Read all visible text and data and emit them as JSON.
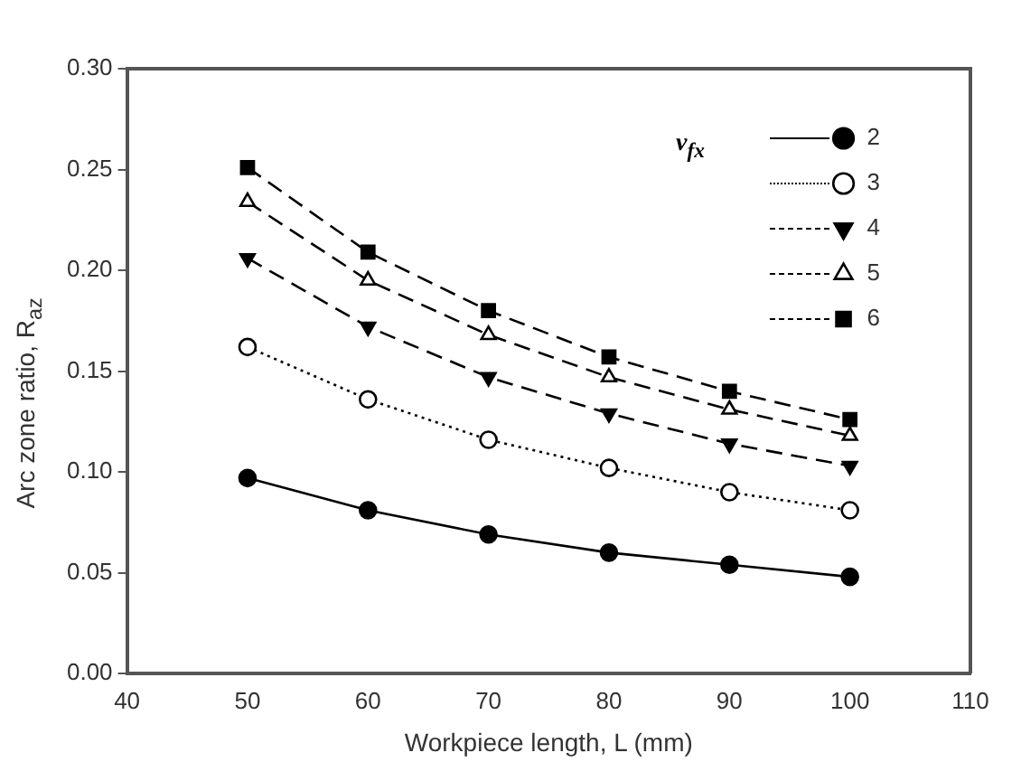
{
  "chart_data": {
    "type": "line",
    "xlabel": "Workpiece length, L (mm)",
    "ylabel": "Arc zone ratio, R$_{az}$",
    "legend_title": "v$_{fx}$",
    "legend": "top right",
    "grid": false,
    "x": [
      50,
      60,
      70,
      80,
      90,
      100
    ],
    "xlim": [
      40,
      110
    ],
    "xticks": [
      40,
      50,
      60,
      70,
      80,
      90,
      100,
      110
    ],
    "ylim": [
      0,
      0.3
    ],
    "yticks": [
      {
        "value": 0,
        "label": "0.00"
      },
      0.05,
      {
        "value": 0.1,
        "label": "0.10"
      },
      0.15,
      {
        "value": 0.2,
        "label": "0.20"
      },
      0.25,
      {
        "value": 0.3,
        "label": "0.30"
      }
    ],
    "series": [
      {
        "name": "2",
        "color": "#000000",
        "marker": "circle",
        "line_style": "solid",
        "values": [
          0.097,
          0.081,
          0.069,
          0.06,
          0.054,
          0.048
        ]
      },
      {
        "name": "3",
        "color": "#000000",
        "marker": "circle",
        "line_style": "dotted",
        "values": [
          0.162,
          0.136,
          0.116,
          0.102,
          0.09,
          0.081
        ]
      },
      {
        "name": "4",
        "color": "#000000",
        "marker": "triangle",
        "line_style": "dashed",
        "values": [
          0.206,
          0.172,
          0.147,
          0.129,
          0.114,
          0.103
        ]
      },
      {
        "name": "5",
        "color": "#000000",
        "marker": "triangle",
        "line_style": "dashed",
        "values": [
          0.234,
          0.195,
          0.168,
          0.147,
          0.131,
          0.118
        ]
      },
      {
        "name": "6",
        "color": "#000000",
        "marker": "square",
        "line_style": "dashed",
        "values": [
          0.251,
          0.209,
          0.18,
          0.157,
          0.14,
          0.126
        ]
      }
    ]
  }
}
